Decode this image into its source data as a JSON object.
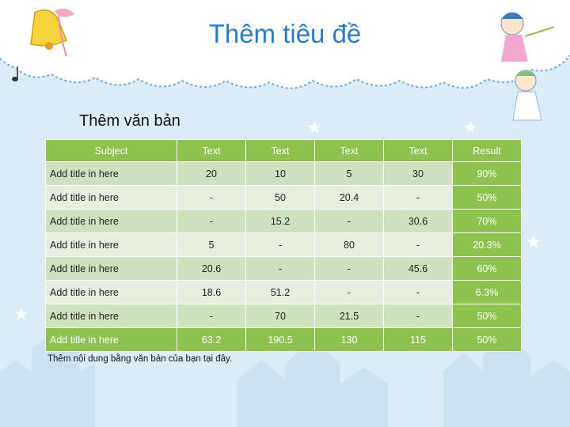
{
  "slide": {
    "title": "Thêm tiêu đề",
    "subtitle": "Thêm văn bản",
    "footnote": "Thêm nội dung bằng văn bản của bạn tại đây."
  },
  "table": {
    "headers": [
      "Subject",
      "Text",
      "Text",
      "Text",
      "Text",
      "Result"
    ],
    "rows": [
      [
        "Add title in here",
        "20",
        "10",
        "5",
        "30",
        "90%"
      ],
      [
        "Add title in here",
        "-",
        "50",
        "20.4",
        "-",
        "50%"
      ],
      [
        "Add title in here",
        "-",
        "15.2",
        "-",
        "30.6",
        "70%"
      ],
      [
        "Add title in here",
        "5",
        "-",
        "80",
        "-",
        "20.3%"
      ],
      [
        "Add title in here",
        "20.6",
        "-",
        "-",
        "45.6",
        "60%"
      ],
      [
        "Add title in here",
        "18.6",
        "51.2",
        "-",
        "-",
        "6.3%"
      ],
      [
        "Add title in here",
        "-",
        "70",
        "21.5",
        "-",
        "50%"
      ],
      [
        "Add title in here",
        "63.2",
        "190.5",
        "130",
        "115",
        "50%"
      ]
    ]
  },
  "colors": {
    "title": "#2b7dc0",
    "header_green": "#8dc24f",
    "row_light": "#e6efdf",
    "row_mid": "#cfe2c0",
    "background": "#dcecf6"
  },
  "icons": [
    "bell-icon",
    "fairy-icon",
    "star-icon",
    "house-icon",
    "music-note-icon"
  ]
}
